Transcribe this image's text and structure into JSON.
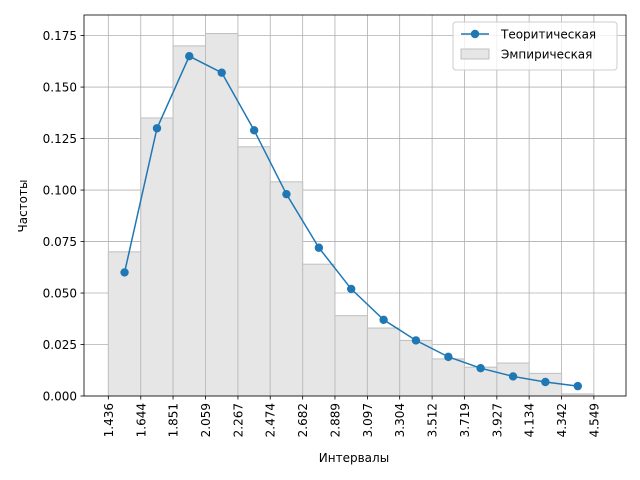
{
  "chart_data": {
    "type": "bar",
    "xlabel": "Интервалы",
    "ylabel": "Частоты",
    "title": "",
    "xlim": [
      1.28,
      4.755
    ],
    "ylim": [
      0,
      0.185
    ],
    "grid": true,
    "legend_position": "top-right",
    "x_ticks": [
      "1.436",
      "1.644",
      "1.851",
      "2.059",
      "2.267",
      "2.474",
      "2.682",
      "2.889",
      "3.097",
      "3.304",
      "3.512",
      "3.719",
      "3.927",
      "4.134",
      "4.342",
      "4.549"
    ],
    "y_ticks": [
      "0.000",
      "0.025",
      "0.050",
      "0.075",
      "0.100",
      "0.125",
      "0.150",
      "0.175"
    ],
    "bin_edges": [
      1.436,
      1.644,
      1.851,
      2.059,
      2.267,
      2.474,
      2.682,
      2.889,
      3.097,
      3.304,
      3.512,
      3.719,
      3.927,
      4.134,
      4.342,
      4.549
    ],
    "series": [
      {
        "name": "Теоритическая",
        "kind": "line",
        "color": "#1f77b4",
        "x": [
          1.54,
          1.748,
          1.955,
          2.163,
          2.371,
          2.578,
          2.786,
          2.993,
          3.201,
          3.408,
          3.616,
          3.823,
          4.031,
          4.238,
          4.446
        ],
        "values": [
          0.06,
          0.13,
          0.165,
          0.157,
          0.129,
          0.098,
          0.072,
          0.052,
          0.037,
          0.027,
          0.019,
          0.0135,
          0.0095,
          0.0068,
          0.0048
        ]
      },
      {
        "name": "Эмпирическая",
        "kind": "bar",
        "color": "#e6e6e6",
        "values": [
          0.07,
          0.135,
          0.17,
          0.176,
          0.121,
          0.104,
          0.064,
          0.039,
          0.033,
          0.027,
          0.018,
          0.014,
          0.016,
          0.011,
          0.001
        ]
      }
    ]
  }
}
